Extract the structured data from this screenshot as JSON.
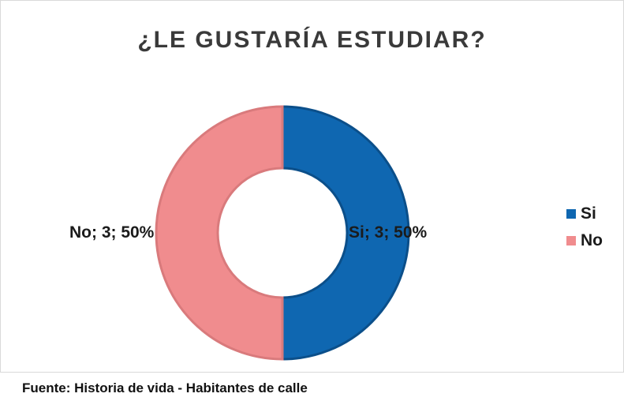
{
  "chart_data": {
    "type": "pie",
    "variant": "donut",
    "title": "¿LE GUSTARÍA ESTUDIAR?",
    "categories": [
      "Si",
      "No"
    ],
    "values": [
      3,
      3
    ],
    "percentages": [
      50,
      50
    ],
    "data_labels": [
      "Si; 3; 50%",
      "No; 3; 50%"
    ],
    "colors": [
      "#0f67b1",
      "#f08c8e"
    ],
    "legend": {
      "position": "right",
      "entries": [
        "Si",
        "No"
      ]
    }
  },
  "source_note": "Fuente: Historia de vida - Habitantes de calle"
}
